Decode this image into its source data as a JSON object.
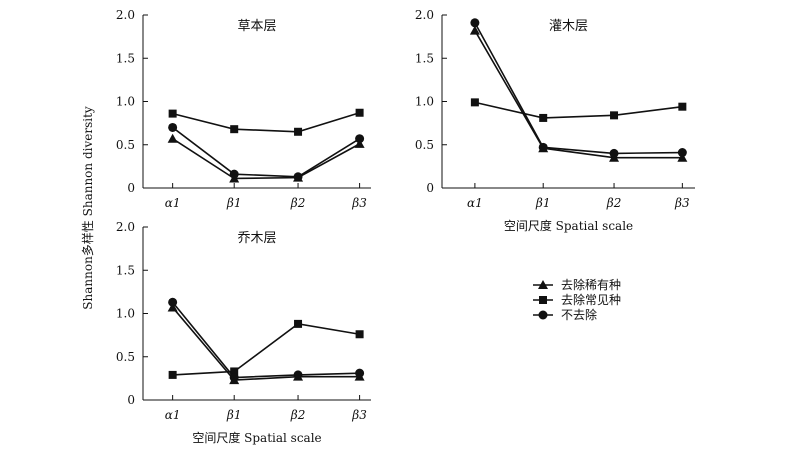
{
  "figure": {
    "ylabel": "Shannon多样性 Shannon diversity",
    "xlabel": "空间尺度 Spatial scale"
  },
  "legend": {
    "position": "right of bottom-left panel",
    "items": [
      {
        "label": "去除稀有种",
        "marker": "triangle"
      },
      {
        "label": "去除常见种",
        "marker": "square"
      },
      {
        "label": "不去除",
        "marker": "circle"
      }
    ]
  },
  "chart_data": [
    {
      "type": "line",
      "title": "草本层",
      "categories": [
        "α1",
        "β1",
        "β2",
        "β3"
      ],
      "ylim": [
        0,
        2.0
      ],
      "yticks": [
        "0",
        "0.5",
        "1.0",
        "1.5",
        "2.0"
      ],
      "grid": false,
      "series": [
        {
          "name": "去除稀有种",
          "marker": "triangle",
          "values": [
            0.57,
            0.11,
            0.12,
            0.51
          ]
        },
        {
          "name": "去除常见种",
          "marker": "square",
          "values": [
            0.86,
            0.68,
            0.65,
            0.87
          ]
        },
        {
          "name": "不去除",
          "marker": "circle",
          "values": [
            0.7,
            0.16,
            0.13,
            0.57
          ]
        }
      ]
    },
    {
      "type": "line",
      "title": "灌木层",
      "categories": [
        "α1",
        "β1",
        "β2",
        "β3"
      ],
      "ylim": [
        0,
        2.0
      ],
      "yticks": [
        "0",
        "0.5",
        "1.0",
        "1.5",
        "2.0"
      ],
      "grid": false,
      "xlabel": "空间尺度 Spatial scale",
      "series": [
        {
          "name": "去除稀有种",
          "marker": "triangle",
          "values": [
            1.82,
            0.46,
            0.35,
            0.35
          ]
        },
        {
          "name": "去除常见种",
          "marker": "square",
          "values": [
            0.99,
            0.81,
            0.84,
            0.94
          ]
        },
        {
          "name": "不去除",
          "marker": "circle",
          "values": [
            1.91,
            0.47,
            0.4,
            0.41
          ]
        }
      ]
    },
    {
      "type": "line",
      "title": "乔木层",
      "categories": [
        "α1",
        "β1",
        "β2",
        "β3"
      ],
      "ylim": [
        0,
        2.0
      ],
      "yticks": [
        "0",
        "0.5",
        "1.0",
        "1.5",
        "2.0"
      ],
      "grid": false,
      "xlabel": "空间尺度 Spatial scale",
      "series": [
        {
          "name": "去除稀有种",
          "marker": "triangle",
          "values": [
            1.07,
            0.23,
            0.27,
            0.27
          ]
        },
        {
          "name": "去除常见种",
          "marker": "square",
          "values": [
            0.29,
            0.33,
            0.88,
            0.76
          ]
        },
        {
          "name": "不去除",
          "marker": "circle",
          "values": [
            1.13,
            0.26,
            0.29,
            0.31
          ]
        }
      ]
    }
  ]
}
